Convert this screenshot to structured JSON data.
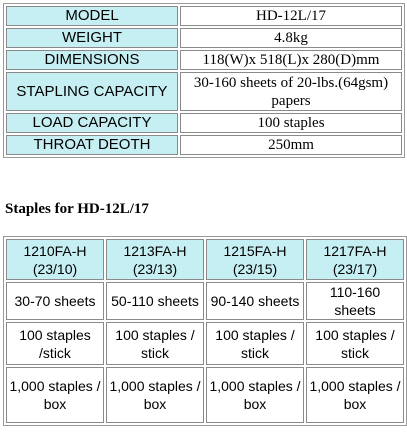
{
  "specs": [
    [
      "MODEL",
      "HD-12L/17"
    ],
    [
      "WEIGHT",
      "4.8kg"
    ],
    [
      "DIMENSIONS",
      "118(W)x 518(L)x 280(D)mm"
    ],
    [
      "STAPLING CAPACITY",
      "30-160 sheets of 20-lbs.(64gsm) papers"
    ],
    [
      "LOAD CAPACITY",
      "100 staples"
    ],
    [
      "THROAT DEOTH",
      "250mm"
    ]
  ],
  "staples_heading": "Staples for HD-12L/17",
  "staples": {
    "header": [
      [
        "1210FA-H",
        "(23/10)"
      ],
      [
        "1213FA-H",
        "(23/13)"
      ],
      [
        "1215FA-H",
        "(23/15)"
      ],
      [
        "1217FA-H",
        "(23/17)"
      ]
    ],
    "rows": [
      [
        "30-70 sheets",
        "50-110 sheets",
        "90-140 sheets",
        "110-160 sheets"
      ],
      [
        "100 staples /stick",
        "100 staples / stick",
        "100 staples / stick",
        "100 staples / stick"
      ],
      [
        "1,000 staples / box",
        "1,000 staples / box",
        "1,000 staples / box",
        "1,000 staples / box"
      ]
    ]
  }
}
